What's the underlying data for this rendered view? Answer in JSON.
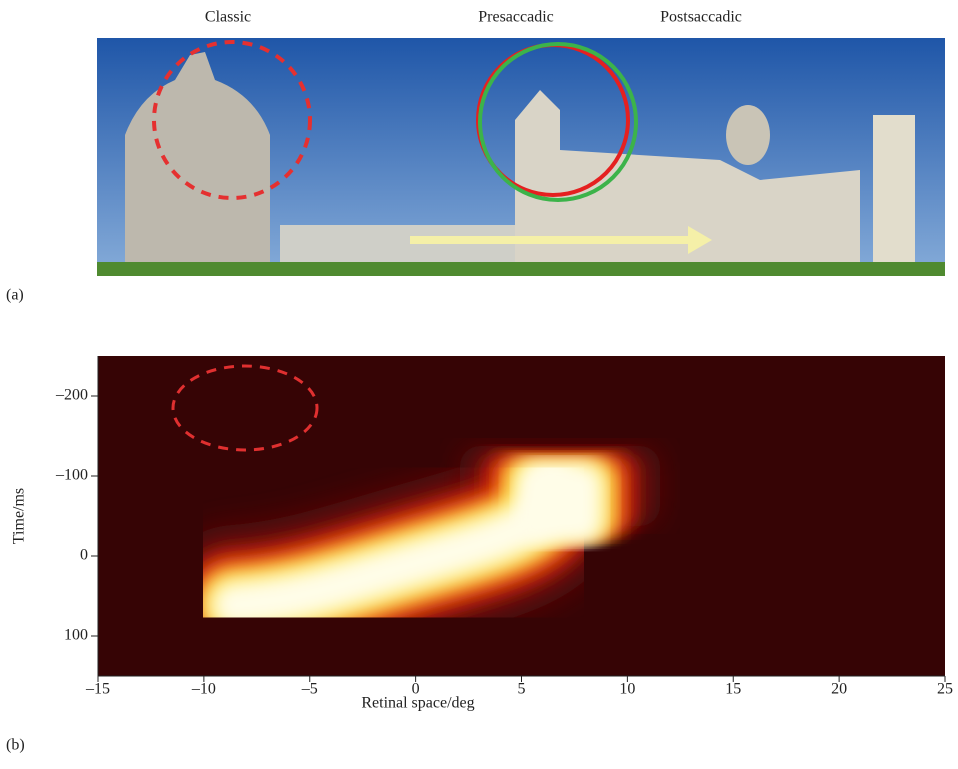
{
  "panel_a": {
    "labels": [
      "Classic",
      "Presaccadic",
      "Postsaccadic"
    ],
    "tag": "(a)"
  },
  "chart_data": {
    "type": "heatmap",
    "tag": "(b)",
    "xlabel": "Retinal space/deg",
    "ylabel": "Time/ms",
    "xlim": [
      -15,
      25
    ],
    "xticks": [
      {
        "value": -15,
        "label": "–15"
      },
      {
        "value": -10,
        "label": "–10"
      },
      {
        "value": -5,
        "label": "–5"
      },
      0,
      5,
      10,
      15,
      20,
      25
    ],
    "ylim": [
      150,
      -250
    ],
    "yticks": [
      {
        "value": -200,
        "label": "–200"
      },
      {
        "value": -100,
        "label": "–100"
      },
      0,
      100
    ]
  }
}
